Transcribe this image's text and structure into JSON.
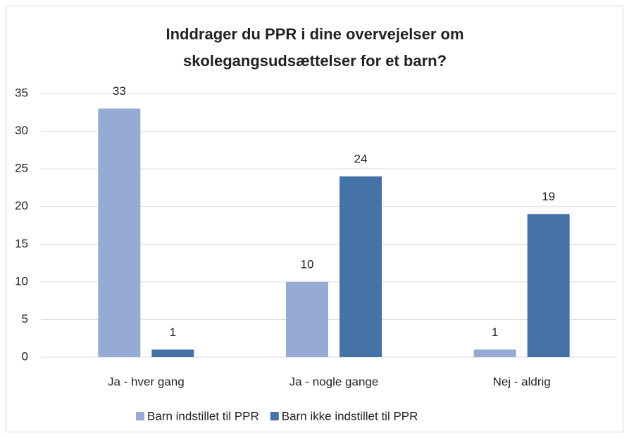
{
  "chart_data": {
    "type": "bar",
    "title": [
      "Inddrager du PPR i dine overvejelser om",
      "skolegangsudsættelser for et barn?"
    ],
    "categories": [
      "Ja - hver gang",
      "Ja - nogle gange",
      "Nej - aldrig"
    ],
    "series": [
      {
        "name": "Barn indstillet til PPR",
        "color": "#95abd3",
        "values": [
          33,
          10,
          1
        ]
      },
      {
        "name": "Barn ikke indstillet til PPR",
        "color": "#4572a7",
        "values": [
          1,
          24,
          19
        ]
      }
    ],
    "ylim": [
      0,
      35
    ],
    "yticks": [
      0,
      5,
      10,
      15,
      20,
      25,
      30,
      35
    ],
    "grid": true,
    "legend": "bottom"
  }
}
